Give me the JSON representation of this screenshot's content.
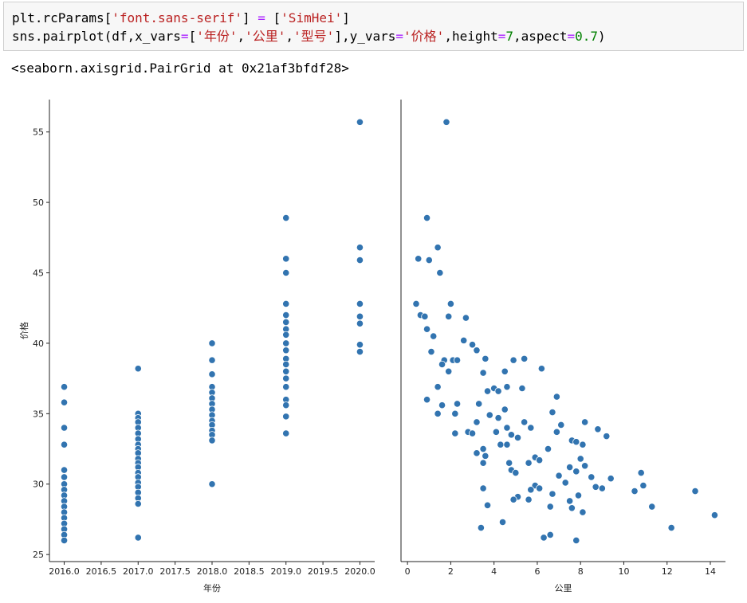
{
  "code": {
    "line1": [
      "plt.rcParams[",
      "'font.sans-serif'",
      "] ",
      "=",
      " [",
      "'SimHei'",
      "]"
    ],
    "line2": [
      "sns.pairplot(df,x_vars",
      "=",
      "[",
      "'年份'",
      ",",
      "'公里'",
      ",",
      "'型号'",
      "],y_vars",
      "=",
      "'价格'",
      ",height",
      "=",
      "7",
      ",aspect",
      "=",
      "0.7",
      ")"
    ]
  },
  "output": "<seaborn.axisgrid.PairGrid at 0x21af3bfdf28>",
  "chart_data": [
    {
      "type": "scatter",
      "xlabel": "年份",
      "ylabel": "价格",
      "color": "#3274b0",
      "xlim": [
        2015.8,
        2020.2
      ],
      "ylim": [
        24.5,
        57.3
      ],
      "xticks": [
        {
          "value": 2016,
          "label": "2016.0"
        },
        {
          "value": 2016.5,
          "label": "2016.5"
        },
        {
          "value": 2017,
          "label": "2017.0"
        },
        {
          "value": 2017.5,
          "label": "2017.5"
        },
        {
          "value": 2018,
          "label": "2018.0"
        },
        {
          "value": 2018.5,
          "label": "2018.5"
        },
        {
          "value": 2019,
          "label": "2019.0"
        },
        {
          "value": 2019.5,
          "label": "2019.5"
        },
        {
          "value": 2020,
          "label": "2020.0"
        }
      ],
      "yticks": [
        25,
        30,
        35,
        40,
        45,
        50,
        55
      ],
      "x": [
        2016,
        2016,
        2016,
        2016,
        2016,
        2016,
        2016,
        2016,
        2016,
        2016,
        2016,
        2016,
        2016,
        2016,
        2016,
        2016,
        2016,
        2017,
        2017,
        2017,
        2017,
        2017,
        2017,
        2017,
        2017,
        2017,
        2017,
        2017,
        2017,
        2017,
        2017,
        2017,
        2017,
        2017,
        2017,
        2017,
        2017,
        2017,
        2018,
        2018,
        2018,
        2018,
        2018,
        2018,
        2018,
        2018,
        2018,
        2018,
        2018,
        2018,
        2018,
        2018,
        2018,
        2019,
        2019,
        2019,
        2019,
        2019,
        2019,
        2019,
        2019,
        2019,
        2019,
        2019,
        2019,
        2019,
        2019,
        2019,
        2019,
        2019,
        2019,
        2019,
        2020,
        2020,
        2020,
        2020,
        2020,
        2020,
        2020,
        2020
      ],
      "values": [
        36.9,
        35.8,
        34.0,
        32.8,
        31.0,
        30.5,
        30.0,
        29.6,
        29.2,
        28.8,
        28.4,
        28.0,
        27.6,
        27.2,
        26.8,
        26.4,
        26.0,
        38.2,
        35.0,
        34.7,
        34.4,
        34.0,
        33.6,
        33.2,
        32.8,
        32.5,
        32.2,
        31.8,
        31.5,
        31.2,
        30.8,
        30.5,
        30.1,
        29.8,
        29.4,
        29.0,
        28.6,
        26.2,
        40.0,
        38.8,
        37.8,
        36.9,
        36.5,
        36.1,
        35.7,
        35.3,
        34.9,
        34.5,
        34.2,
        33.8,
        33.5,
        33.1,
        30.0,
        48.9,
        46.0,
        45.0,
        42.8,
        42.0,
        41.5,
        41.0,
        40.6,
        40.0,
        39.5,
        38.9,
        38.5,
        38.0,
        37.5,
        36.9,
        36.0,
        35.6,
        34.8,
        33.6,
        55.7,
        46.8,
        45.9,
        42.8,
        41.9,
        41.4,
        39.9,
        39.4
      ]
    },
    {
      "type": "scatter",
      "xlabel": "公里",
      "color": "#3274b0",
      "xlim": [
        -0.3,
        14.7
      ],
      "ylim": [
        24.5,
        57.3
      ],
      "xticks": [
        0,
        2,
        4,
        6,
        8,
        10,
        12,
        14
      ],
      "x": [
        1.8,
        0.9,
        1.4,
        0.5,
        1.0,
        1.5,
        0.4,
        2.0,
        0.6,
        0.8,
        1.9,
        2.7,
        0.9,
        1.2,
        2.6,
        3.0,
        1.1,
        3.2,
        1.7,
        2.1,
        3.6,
        1.6,
        1.9,
        2.3,
        4.5,
        4.9,
        5.4,
        6.2,
        3.5,
        1.4,
        4.0,
        3.7,
        4.6,
        5.3,
        6.9,
        4.2,
        0.9,
        1.6,
        2.3,
        3.3,
        4.5,
        6.7,
        1.4,
        2.2,
        3.8,
        4.2,
        5.4,
        7.1,
        8.2,
        3.2,
        4.6,
        5.7,
        8.8,
        6.9,
        2.2,
        2.8,
        3.0,
        4.1,
        4.8,
        5.1,
        7.6,
        7.8,
        9.2,
        8.1,
        3.5,
        4.3,
        4.6,
        6.5,
        3.2,
        3.6,
        5.9,
        6.1,
        8.0,
        3.5,
        5.6,
        4.7,
        4.8,
        7.5,
        8.2,
        5.0,
        7.8,
        10.8,
        7.0,
        8.5,
        9.4,
        7.3,
        10.9,
        5.9,
        6.1,
        8.7,
        3.5,
        5.7,
        9.0,
        10.5,
        13.3,
        5.1,
        6.7,
        7.9,
        4.9,
        5.6,
        7.5,
        3.7,
        6.6,
        7.6,
        11.3,
        8.1,
        14.2,
        4.4,
        3.4,
        12.2,
        6.6,
        6.3,
        7.8
      ],
      "values": [
        55.7,
        48.9,
        46.8,
        46.0,
        45.9,
        45.0,
        42.8,
        42.8,
        42.0,
        41.9,
        41.9,
        41.8,
        41.0,
        40.5,
        40.2,
        39.9,
        39.4,
        39.5,
        38.8,
        38.8,
        38.9,
        38.5,
        38.0,
        38.8,
        38.0,
        38.8,
        38.9,
        38.2,
        37.9,
        36.9,
        36.8,
        36.6,
        36.9,
        36.8,
        36.2,
        36.6,
        36.0,
        35.6,
        35.7,
        35.7,
        35.3,
        35.1,
        35.0,
        35.0,
        34.9,
        34.7,
        34.4,
        34.2,
        34.4,
        34.4,
        34.0,
        34.0,
        33.9,
        33.7,
        33.6,
        33.7,
        33.6,
        33.7,
        33.5,
        33.3,
        33.1,
        33.0,
        33.4,
        32.8,
        32.5,
        32.8,
        32.8,
        32.5,
        32.2,
        32.0,
        31.9,
        31.7,
        31.8,
        31.5,
        31.5,
        31.5,
        31.0,
        31.2,
        31.3,
        30.8,
        30.9,
        30.8,
        30.6,
        30.5,
        30.4,
        30.1,
        29.9,
        29.9,
        29.7,
        29.8,
        29.7,
        29.6,
        29.7,
        29.5,
        29.5,
        29.1,
        29.3,
        29.2,
        28.9,
        28.9,
        28.8,
        28.5,
        28.4,
        28.3,
        28.4,
        28.0,
        27.8,
        27.3,
        26.9,
        26.9,
        26.4,
        26.2,
        26.0
      ]
    }
  ]
}
